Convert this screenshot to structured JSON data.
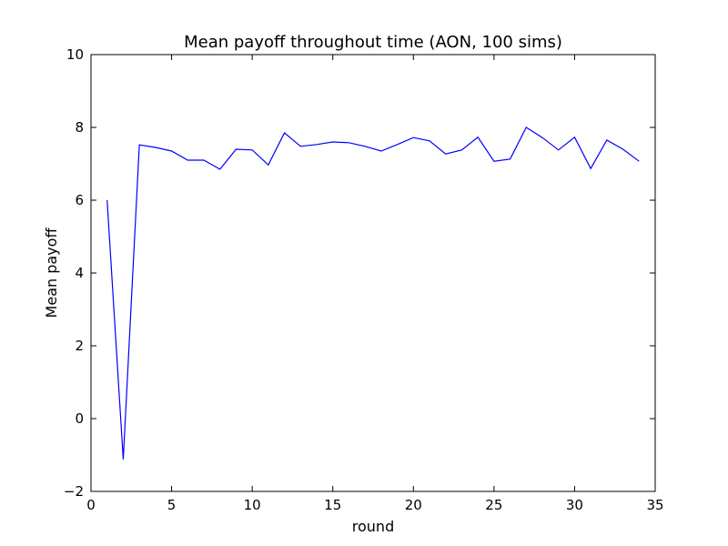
{
  "chart_data": {
    "type": "line",
    "title": "Mean payoff throughout time (AON, 100 sims)",
    "xlabel": "round",
    "ylabel": "Mean payoff",
    "xlim": [
      0,
      35
    ],
    "ylim": [
      -2,
      10
    ],
    "xticks": [
      0,
      5,
      10,
      15,
      20,
      25,
      30,
      35
    ],
    "yticks": [
      -2,
      0,
      2,
      4,
      6,
      8,
      10
    ],
    "grid": false,
    "line_color": "#0000ff",
    "series": [
      {
        "x": [
          1,
          2,
          3,
          4,
          5,
          6,
          7,
          8,
          9,
          10,
          11,
          12,
          13,
          14,
          15,
          16,
          17,
          18,
          19,
          20,
          21,
          22,
          23,
          24,
          25,
          26,
          27,
          28,
          29,
          30,
          31,
          32,
          33,
          34
        ],
        "values": [
          6.0,
          -1.12,
          7.52,
          7.45,
          7.35,
          7.1,
          7.1,
          6.85,
          7.4,
          7.38,
          6.97,
          7.85,
          7.48,
          7.53,
          7.6,
          7.58,
          7.48,
          7.35,
          7.53,
          7.72,
          7.63,
          7.27,
          7.38,
          7.73,
          7.07,
          7.13,
          8.0,
          7.72,
          7.38,
          7.73,
          6.87,
          7.65,
          7.4,
          7.07
        ]
      }
    ]
  }
}
